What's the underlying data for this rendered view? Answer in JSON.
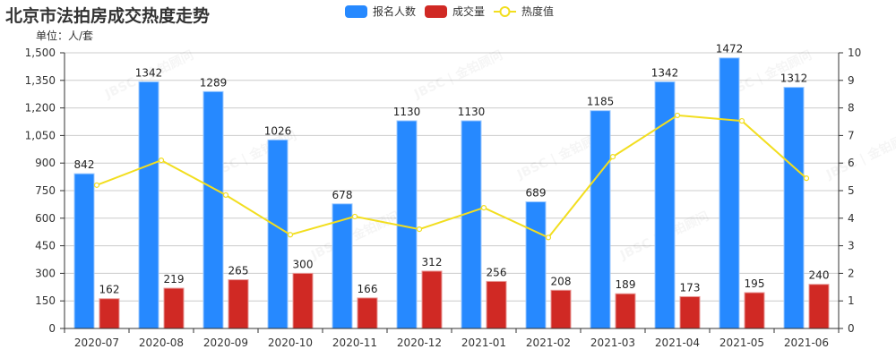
{
  "header": {
    "title": "北京市法拍房成交热度走势",
    "unit": "单位：人/套"
  },
  "legend": {
    "items": [
      {
        "label": "报名人数",
        "color": "#2689FF",
        "type": "bar"
      },
      {
        "label": "成交量",
        "color": "#D02924",
        "type": "bar"
      },
      {
        "label": "热度值",
        "color": "#F2DE1F",
        "type": "line"
      }
    ]
  },
  "colors": {
    "registrants": "#2689FF",
    "transactions": "#D02924",
    "heat": "#F2DE1F",
    "grid": "#cccccc",
    "axis": "#333333",
    "text": "#333333"
  },
  "chart_data": {
    "type": "bar",
    "title": "北京市法拍房成交热度走势",
    "subtitle": "单位：人/套",
    "xlabel": "",
    "ylabel": "",
    "categories": [
      "2020-07",
      "2020-08",
      "2020-09",
      "2020-10",
      "2020-11",
      "2020-12",
      "2021-01",
      "2021-02",
      "2021-03",
      "2021-04",
      "2021-05",
      "2021-06"
    ],
    "series": [
      {
        "name": "报名人数",
        "type": "bar",
        "axis": "left",
        "values": [
          842,
          1342,
          1289,
          1026,
          678,
          1130,
          1130,
          689,
          1185,
          1342,
          1472,
          1312
        ]
      },
      {
        "name": "成交量",
        "type": "bar",
        "axis": "left",
        "values": [
          162,
          219,
          265,
          300,
          166,
          312,
          256,
          208,
          189,
          173,
          195,
          240
        ]
      },
      {
        "name": "热度值",
        "type": "line",
        "axis": "right",
        "values": [
          5.2,
          6.1,
          4.84,
          3.4,
          4.06,
          3.6,
          4.38,
          3.3,
          6.23,
          7.73,
          7.53,
          5.45
        ]
      }
    ],
    "ylim": [
      0,
      1500
    ],
    "yticks": [
      "0",
      "150",
      "300",
      "450",
      "600",
      "750",
      "900",
      "1,050",
      "1,200",
      "1,350",
      "1,500"
    ],
    "y2lim": [
      0,
      10
    ],
    "y2ticks": [
      "0",
      "1",
      "2",
      "3",
      "4",
      "5",
      "6",
      "7",
      "8",
      "9",
      "10"
    ],
    "grid": true,
    "legend_position": "top"
  }
}
